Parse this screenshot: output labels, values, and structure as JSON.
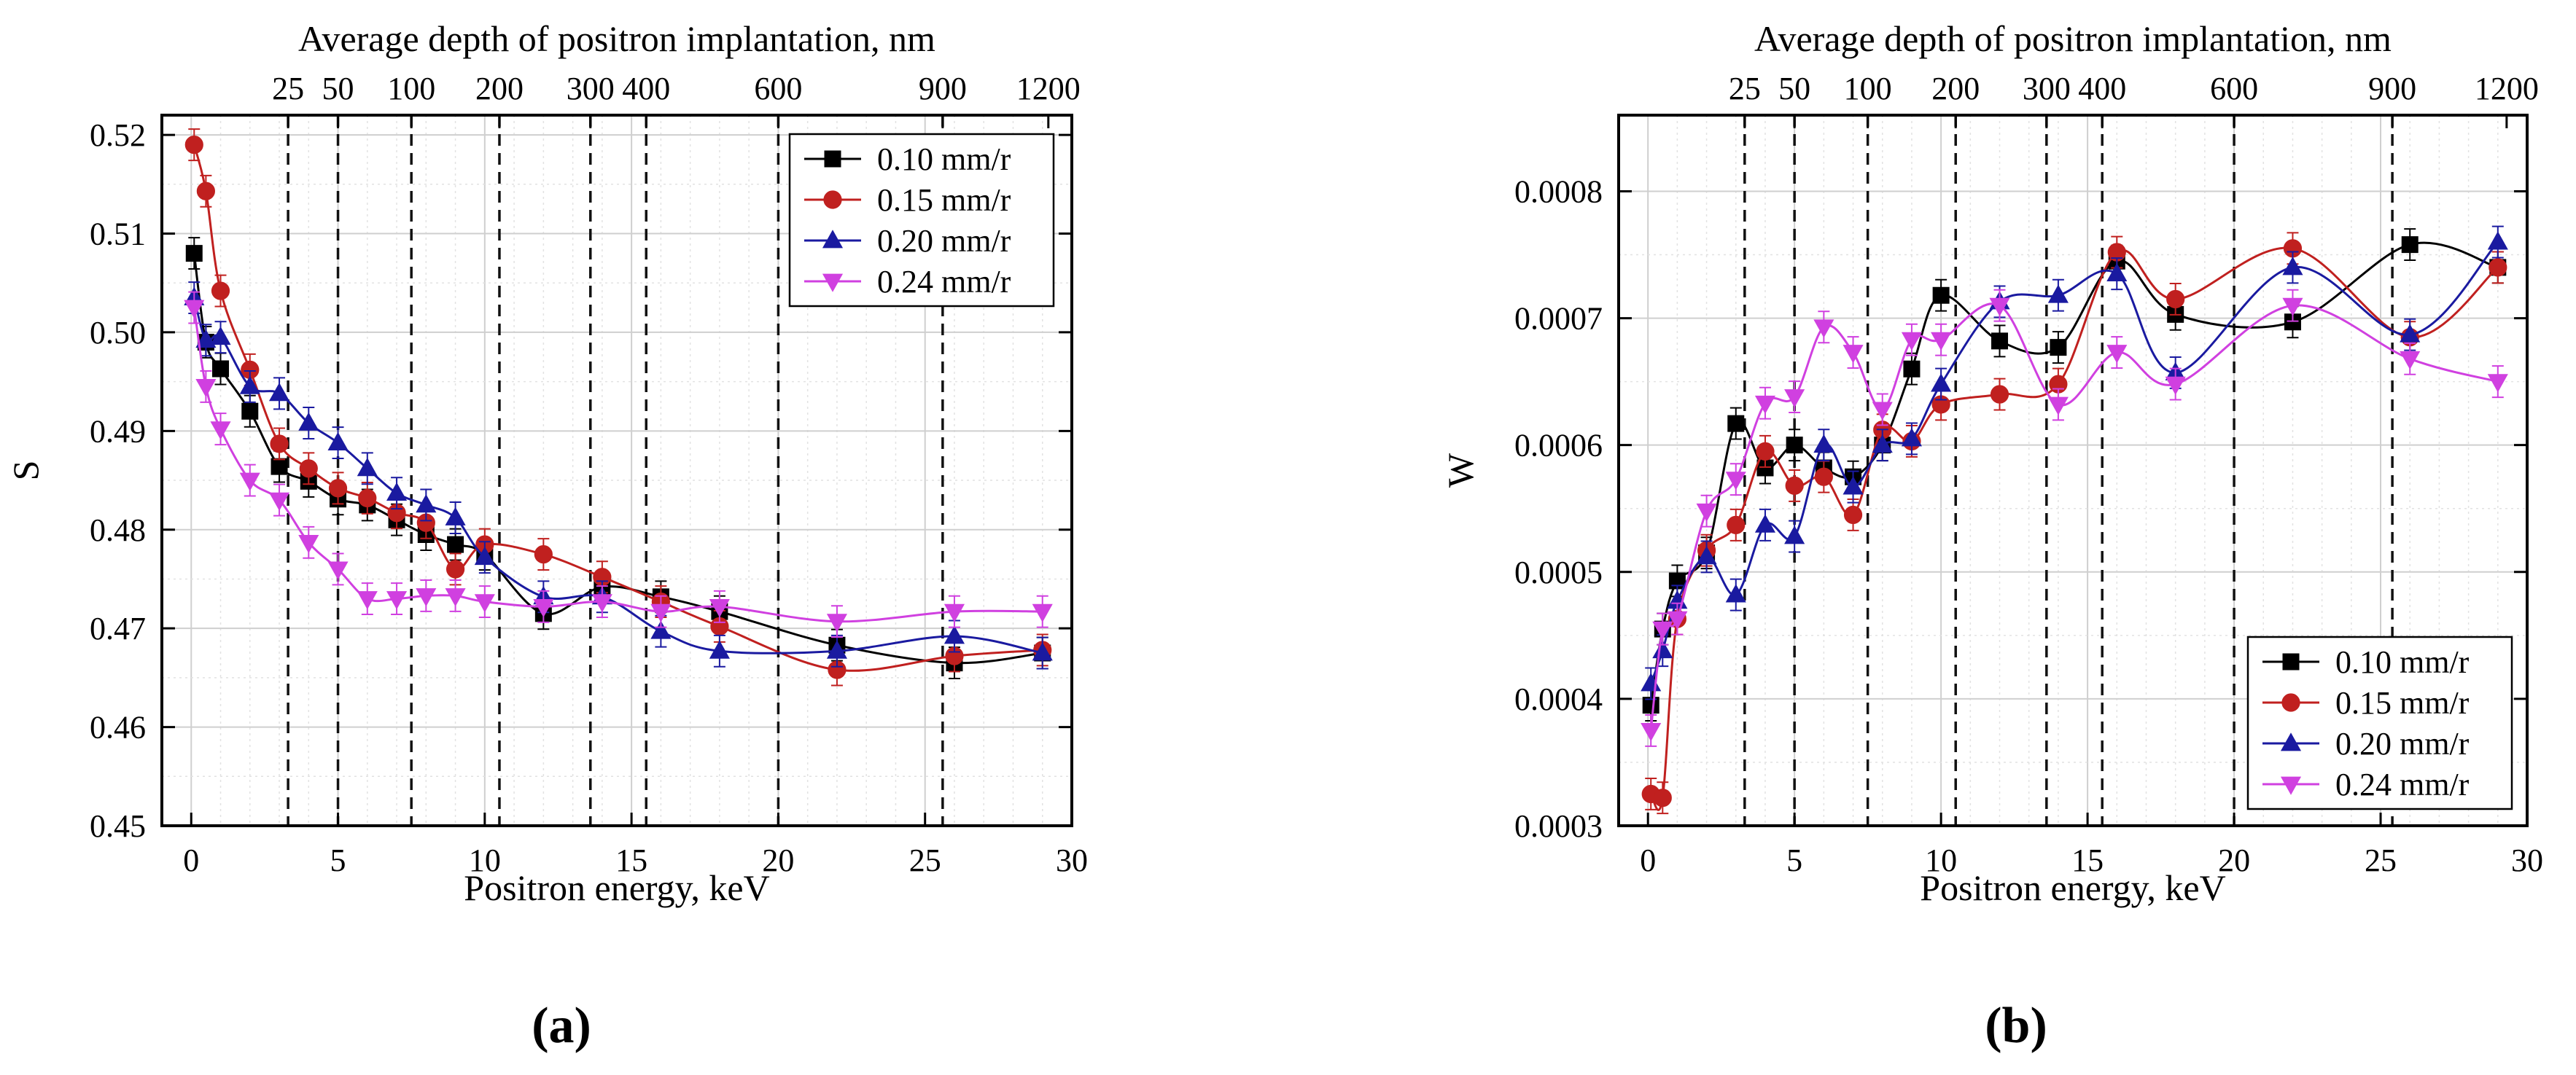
{
  "chart_data": [
    {
      "type": "line",
      "panel_label": "(a)",
      "xlabel": "Positron energy, keV",
      "ylabel": "S",
      "top_axis_label": "Average depth of positron implantation, nm",
      "xlim": [
        -1,
        30
      ],
      "ylim": [
        0.45,
        0.522
      ],
      "x_ticks": [
        0,
        5,
        10,
        15,
        20,
        25,
        30
      ],
      "y_ticks": [
        0.45,
        0.46,
        0.47,
        0.48,
        0.49,
        0.5,
        0.51,
        0.52
      ],
      "y_tick_labels": [
        "0.45",
        "0.46",
        "0.47",
        "0.48",
        "0.49",
        "0.50",
        "0.51",
        "0.52"
      ],
      "top_ticks": [
        {
          "label": "25",
          "energy": 3.3
        },
        {
          "label": "50",
          "energy": 5.0
        },
        {
          "label": "100",
          "energy": 7.5
        },
        {
          "label": "200",
          "energy": 10.5
        },
        {
          "label": "300",
          "energy": 13.6
        },
        {
          "label": "400",
          "energy": 15.5
        },
        {
          "label": "600",
          "energy": 20.0
        },
        {
          "label": "900",
          "energy": 25.6
        },
        {
          "label": "1200",
          "energy": 29.2
        }
      ],
      "legend_position": "top-right",
      "series": [
        {
          "name": "0.10 mm/r",
          "color": "#000000",
          "marker": "square",
          "x": [
            0.1,
            0.5,
            1,
            2,
            3,
            4,
            5,
            6,
            7,
            8,
            9,
            10,
            12,
            14,
            16,
            18,
            22,
            26,
            29
          ],
          "y": [
            0.508,
            0.499,
            0.4963,
            0.492,
            0.4864,
            0.4849,
            0.4831,
            0.4825,
            0.481,
            0.4795,
            0.4785,
            0.4775,
            0.4715,
            0.4742,
            0.4732,
            0.4717,
            0.4683,
            0.4665,
            0.4675
          ]
        },
        {
          "name": "0.15 mm/r",
          "color": "#c0201f",
          "marker": "circle",
          "x": [
            0.1,
            0.5,
            1,
            2,
            3,
            4,
            5,
            6,
            7,
            8,
            9,
            10,
            12,
            14,
            16,
            18,
            22,
            26,
            29
          ],
          "y": [
            0.519,
            0.5143,
            0.5042,
            0.4962,
            0.4887,
            0.4862,
            0.4842,
            0.4832,
            0.4817,
            0.4807,
            0.476,
            0.4785,
            0.4775,
            0.4752,
            0.4727,
            0.4702,
            0.4658,
            0.4672,
            0.4678
          ]
        },
        {
          "name": "0.20 mm/r",
          "color": "#1a1aa0",
          "marker": "triangle-up",
          "x": [
            0.1,
            0.5,
            1,
            2,
            3,
            4,
            5,
            6,
            7,
            8,
            9,
            10,
            12,
            14,
            16,
            18,
            22,
            26,
            29
          ],
          "y": [
            0.5035,
            0.4992,
            0.4995,
            0.4945,
            0.4938,
            0.4908,
            0.4888,
            0.4862,
            0.4837,
            0.4825,
            0.4812,
            0.4772,
            0.4732,
            0.4732,
            0.4697,
            0.4677,
            0.4677,
            0.4692,
            0.4675
          ]
        },
        {
          "name": "0.24 mm/r",
          "color": "#d040e0",
          "marker": "triangle-down",
          "x": [
            0.1,
            0.5,
            1,
            2,
            3,
            4,
            5,
            6,
            7,
            8,
            9,
            10,
            12,
            14,
            16,
            18,
            22,
            26,
            29
          ],
          "y": [
            0.5025,
            0.4945,
            0.4902,
            0.485,
            0.483,
            0.4787,
            0.476,
            0.473,
            0.473,
            0.4733,
            0.4733,
            0.4727,
            0.4722,
            0.4727,
            0.4717,
            0.4722,
            0.4707,
            0.4717,
            0.4717
          ]
        }
      ]
    },
    {
      "type": "line",
      "panel_label": "(b)",
      "xlabel": "Positron energy, keV",
      "ylabel": "W",
      "top_axis_label": "Average depth of positron implantation, nm",
      "xlim": [
        -1,
        30
      ],
      "ylim": [
        0.0003,
        0.00086
      ],
      "x_ticks": [
        0,
        5,
        10,
        15,
        20,
        25,
        30
      ],
      "y_ticks": [
        0.0003,
        0.0004,
        0.0005,
        0.0006,
        0.0007,
        0.0008
      ],
      "y_tick_labels": [
        "0.0003",
        "0.0004",
        "0.0005",
        "0.0006",
        "0.0007",
        "0.0008"
      ],
      "top_ticks": [
        {
          "label": "25",
          "energy": 3.3
        },
        {
          "label": "50",
          "energy": 5.0
        },
        {
          "label": "100",
          "energy": 7.5
        },
        {
          "label": "200",
          "energy": 10.5
        },
        {
          "label": "300",
          "energy": 13.6
        },
        {
          "label": "400",
          "energy": 15.5
        },
        {
          "label": "600",
          "energy": 20.0
        },
        {
          "label": "900",
          "energy": 25.4
        },
        {
          "label": "1200",
          "energy": 29.3
        }
      ],
      "legend_position": "bottom-right",
      "series": [
        {
          "name": "0.10 mm/r",
          "color": "#000000",
          "marker": "square",
          "x": [
            0.1,
            0.5,
            1,
            2,
            3,
            4,
            5,
            6,
            7,
            8,
            9,
            10,
            12,
            14,
            16,
            18,
            22,
            26,
            29
          ],
          "y": [
            0.000395,
            0.000455,
            0.000493,
            0.000515,
            0.000617,
            0.000582,
            0.0006,
            0.000582,
            0.000575,
            0.0006,
            0.00066,
            0.000718,
            0.000682,
            0.000677,
            0.000745,
            0.000703,
            0.000697,
            0.000758,
            0.00074
          ]
        },
        {
          "name": "0.15 mm/r",
          "color": "#c0201f",
          "marker": "circle",
          "x": [
            0.1,
            0.5,
            1,
            2,
            3,
            4,
            5,
            6,
            7,
            8,
            9,
            10,
            12,
            14,
            16,
            18,
            22,
            26,
            29
          ],
          "y": [
            0.000325,
            0.000322,
            0.000463,
            0.000517,
            0.000537,
            0.000595,
            0.000568,
            0.000575,
            0.000545,
            0.000612,
            0.000603,
            0.000632,
            0.00064,
            0.000648,
            0.000752,
            0.000715,
            0.000755,
            0.000685,
            0.00074
          ]
        },
        {
          "name": "0.20 mm/r",
          "color": "#1a1aa0",
          "marker": "triangle-up",
          "x": [
            0.1,
            0.5,
            1,
            2,
            3,
            4,
            5,
            6,
            7,
            8,
            9,
            10,
            12,
            14,
            16,
            18,
            22,
            26,
            29
          ],
          "y": [
            0.000412,
            0.000438,
            0.000477,
            0.000512,
            0.000482,
            0.000537,
            0.000528,
            0.0006,
            0.000567,
            0.0006,
            0.000605,
            0.000648,
            0.000713,
            0.000718,
            0.000735,
            0.000657,
            0.00074,
            0.000687,
            0.00076
          ]
        },
        {
          "name": "0.24 mm/r",
          "color": "#d040e0",
          "marker": "triangle-down",
          "x": [
            0.1,
            0.5,
            1,
            2,
            3,
            4,
            5,
            6,
            7,
            8,
            9,
            10,
            12,
            14,
            16,
            18,
            22,
            26,
            29
          ],
          "y": [
            0.000375,
            0.000455,
            0.000463,
            0.000548,
            0.000573,
            0.000633,
            0.000638,
            0.000693,
            0.000673,
            0.000628,
            0.000683,
            0.000683,
            0.00071,
            0.000632,
            0.000673,
            0.000648,
            0.00071,
            0.000668,
            0.00065
          ]
        }
      ]
    }
  ]
}
